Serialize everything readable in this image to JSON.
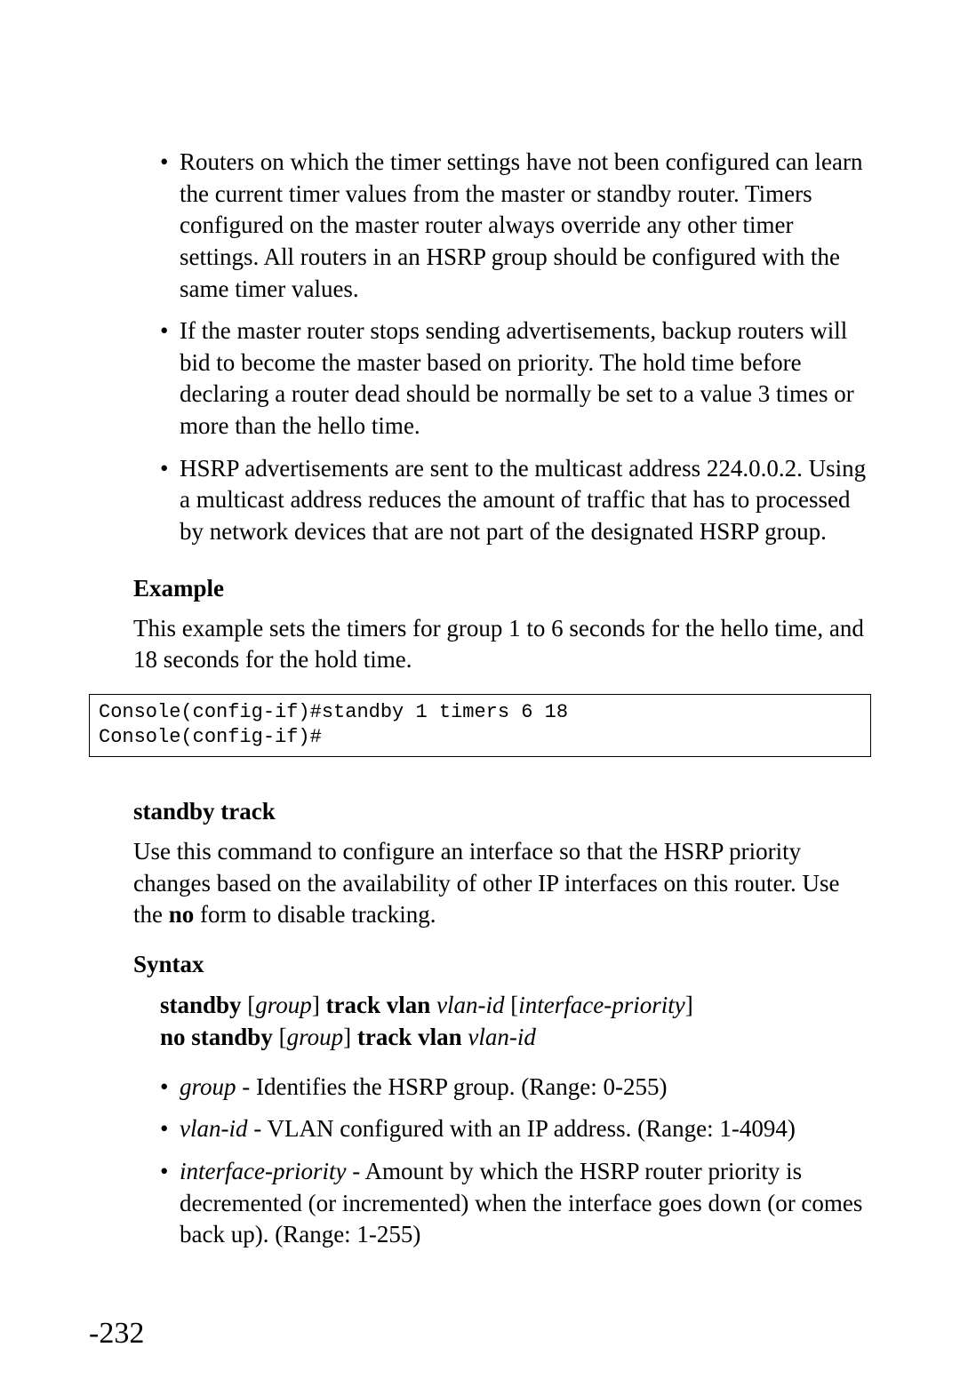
{
  "bullets_top": [
    "Routers on which the timer settings have not been configured can learn the current timer values from the master or standby router. Timers configured on the master router always override any other timer settings. All routers in an HSRP group should be configured with the same timer values.",
    "If the master router stops sending advertisements, backup routers will bid to become the master based on priority. The hold time before declaring a router dead should be normally be set to a value 3 times or more than the hello time.",
    "HSRP advertisements are sent to the multicast address 224.0.0.2. Using a multicast address reduces the amount of traffic that has to processed by network devices that are not part of the designated HSRP group."
  ],
  "example_heading": "Example",
  "example_text": "This example sets the timers for group 1 to 6 seconds for the hello time, and 18 seconds for the hold time.",
  "code": "Console(config-if)#standby 1 timers 6 18\nConsole(config-if)#",
  "cmd_heading": "standby track",
  "cmd_desc_parts": {
    "pre": "Use this command to configure an interface so that the HSRP priority changes based on the availability of other IP interfaces on this router. Use the ",
    "bold": "no",
    "post": " form to disable tracking."
  },
  "syntax_heading": "Syntax",
  "syntax_line1": {
    "p1": "standby",
    "p2": "group",
    "p3": "track vlan",
    "p4": "vlan-id",
    "p5": "interface-priority"
  },
  "syntax_line2": {
    "p1": "no standby",
    "p2": "group",
    "p3": "track vlan",
    "p4": "vlan-id"
  },
  "param_bullets": [
    {
      "term": "group",
      "desc": " - Identifies the HSRP group. (Range: 0-255)"
    },
    {
      "term": "vlan-id",
      "desc": " - VLAN configured with an IP address. (Range: 1-4094)"
    },
    {
      "term": "interface-priority",
      "desc": " - Amount by which the HSRP router priority is decremented (or incremented) when the interface goes down (or comes back up). (Range: 1-255)"
    }
  ],
  "page_number": "-232"
}
